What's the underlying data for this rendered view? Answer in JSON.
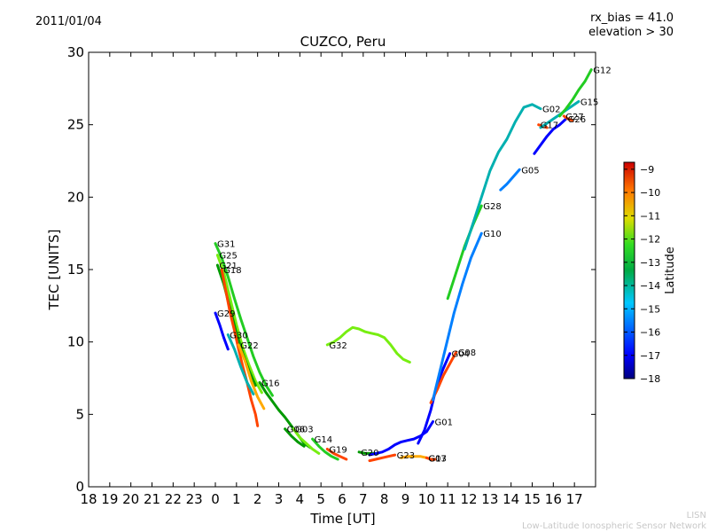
{
  "header": {
    "date": "2011/01/04",
    "rx_bias": "rx_bias = 41.0",
    "elevation": "elevation > 30"
  },
  "footer": {
    "line1": "LISN",
    "line2": "Low-Latitude Ionospheric Sensor Network"
  },
  "colors": {
    "scale": [
      "#00007f",
      "#0000ff",
      "#007fff",
      "#00b0b0",
      "#009900",
      "#22cc22",
      "#77ee11",
      "#dddd00",
      "#ffaa00",
      "#ff4400",
      "#cc0000"
    ]
  },
  "chart_data": {
    "type": "scatter",
    "title": "CUZCO, Peru",
    "xlabel": "Time [UT]",
    "ylabel": "TEC [UNITS]",
    "xlim": [
      0,
      24
    ],
    "ylim": [
      0,
      30
    ],
    "x_tick_labels": [
      "18",
      "19",
      "20",
      "21",
      "22",
      "23",
      "0",
      "1",
      "2",
      "3",
      "4",
      "5",
      "6",
      "7",
      "8",
      "9",
      "10",
      "11",
      "12",
      "13",
      "14",
      "15",
      "16",
      "17"
    ],
    "y_ticks": [
      0,
      5,
      10,
      15,
      20,
      25,
      30
    ],
    "grid": false,
    "colorbar": {
      "label": "Latitude",
      "min": -18,
      "max": -8.7,
      "ticks": [
        -18,
        -17,
        -16,
        -15,
        -14,
        -13,
        -12,
        -11,
        -10,
        -9
      ]
    },
    "series": [
      {
        "name": "G31",
        "lat": -13,
        "points": [
          [
            6.0,
            16.8
          ],
          [
            6.3,
            15.8
          ],
          [
            6.6,
            14.5
          ],
          [
            6.9,
            13.0
          ],
          [
            7.2,
            11.6
          ],
          [
            7.5,
            10.3
          ],
          [
            7.8,
            9.0
          ],
          [
            8.1,
            7.9
          ],
          [
            8.4,
            7.0
          ],
          [
            8.7,
            6.3
          ]
        ]
      },
      {
        "name": "G25",
        "lat": -12,
        "points": [
          [
            6.1,
            16.0
          ],
          [
            6.4,
            14.8
          ],
          [
            6.7,
            13.0
          ],
          [
            7.0,
            11.2
          ],
          [
            7.3,
            9.6
          ],
          [
            7.6,
            8.4
          ],
          [
            7.9,
            7.3
          ],
          [
            8.2,
            6.5
          ]
        ]
      },
      {
        "name": "G21",
        "lat": -14,
        "points": [
          [
            6.1,
            15.3
          ],
          [
            6.4,
            14.0
          ],
          [
            6.7,
            12.3
          ],
          [
            7.0,
            10.6
          ],
          [
            7.3,
            9.2
          ],
          [
            7.6,
            8.0
          ],
          [
            7.9,
            7.0
          ]
        ]
      },
      {
        "name": "G18",
        "lat": -10,
        "points": [
          [
            6.3,
            15.0
          ],
          [
            6.5,
            13.5
          ],
          [
            6.7,
            12.0
          ],
          [
            6.9,
            10.8
          ],
          [
            7.1,
            9.5
          ],
          [
            7.3,
            8.3
          ],
          [
            7.5,
            7.2
          ],
          [
            7.7,
            6.0
          ],
          [
            7.9,
            5.0
          ],
          [
            8.0,
            4.2
          ]
        ]
      },
      {
        "name": "G29",
        "lat": -17,
        "points": [
          [
            6.0,
            12.0
          ],
          [
            6.2,
            11.2
          ],
          [
            6.4,
            10.3
          ],
          [
            6.6,
            9.5
          ]
        ]
      },
      {
        "name": "G30",
        "lat": -15,
        "points": [
          [
            6.6,
            10.5
          ],
          [
            6.9,
            9.5
          ],
          [
            7.2,
            8.3
          ],
          [
            7.5,
            7.2
          ],
          [
            7.8,
            6.4
          ]
        ]
      },
      {
        "name": "G22",
        "lat": -11,
        "points": [
          [
            7.1,
            9.8
          ],
          [
            7.4,
            8.7
          ],
          [
            7.7,
            7.3
          ],
          [
            8.0,
            6.2
          ],
          [
            8.3,
            5.4
          ]
        ]
      },
      {
        "name": "G16",
        "lat": -14,
        "points": [
          [
            8.1,
            7.2
          ],
          [
            8.4,
            6.5
          ],
          [
            8.7,
            5.9
          ],
          [
            9.0,
            5.3
          ],
          [
            9.3,
            4.8
          ],
          [
            9.6,
            4.2
          ],
          [
            9.9,
            3.6
          ],
          [
            10.2,
            3.0
          ],
          [
            10.5,
            2.7
          ]
        ]
      },
      {
        "name": "G06",
        "lat": -14,
        "points": [
          [
            9.3,
            4.0
          ],
          [
            9.6,
            3.5
          ],
          [
            9.9,
            3.1
          ],
          [
            10.2,
            2.8
          ]
        ]
      },
      {
        "name": "G03",
        "lat": -12,
        "points": [
          [
            9.7,
            4.0
          ],
          [
            10.0,
            3.4
          ],
          [
            10.3,
            3.0
          ],
          [
            10.6,
            2.6
          ],
          [
            10.9,
            2.3
          ]
        ]
      },
      {
        "name": "G14",
        "lat": -13,
        "points": [
          [
            10.6,
            3.3
          ],
          [
            10.9,
            2.8
          ],
          [
            11.2,
            2.4
          ],
          [
            11.5,
            2.1
          ],
          [
            11.8,
            1.9
          ]
        ]
      },
      {
        "name": "G19",
        "lat": -10,
        "points": [
          [
            11.3,
            2.6
          ],
          [
            11.6,
            2.3
          ],
          [
            11.9,
            2.1
          ],
          [
            12.2,
            1.9
          ]
        ]
      },
      {
        "name": "G32",
        "lat": -12,
        "points": [
          [
            11.3,
            9.8
          ],
          [
            11.6,
            10.0
          ],
          [
            11.9,
            10.3
          ],
          [
            12.2,
            10.7
          ],
          [
            12.5,
            11.0
          ],
          [
            12.8,
            10.9
          ],
          [
            13.1,
            10.7
          ],
          [
            13.4,
            10.6
          ],
          [
            13.7,
            10.5
          ],
          [
            14.0,
            10.3
          ],
          [
            14.3,
            9.8
          ],
          [
            14.6,
            9.2
          ],
          [
            14.9,
            8.8
          ],
          [
            15.2,
            8.6
          ]
        ]
      },
      {
        "name": "G20",
        "lat": -14,
        "points": [
          [
            12.8,
            2.4
          ],
          [
            13.1,
            2.3
          ],
          [
            13.4,
            2.3
          ],
          [
            13.7,
            2.3
          ]
        ]
      },
      {
        "name": "G01",
        "lat": -17,
        "points": [
          [
            13.3,
            2.2
          ],
          [
            13.6,
            2.3
          ],
          [
            13.9,
            2.4
          ],
          [
            14.2,
            2.6
          ],
          [
            14.5,
            2.9
          ],
          [
            14.8,
            3.1
          ],
          [
            15.1,
            3.2
          ],
          [
            15.4,
            3.3
          ],
          [
            15.7,
            3.5
          ],
          [
            16.0,
            3.8
          ],
          [
            16.3,
            4.5
          ]
        ]
      },
      {
        "name": "G23",
        "lat": -10,
        "points": [
          [
            13.3,
            1.8
          ],
          [
            13.6,
            1.9
          ],
          [
            13.9,
            2.0
          ],
          [
            14.2,
            2.1
          ],
          [
            14.5,
            2.2
          ]
        ]
      },
      {
        "name": "G13",
        "lat": -11,
        "points": [
          [
            14.8,
            2.0
          ],
          [
            15.1,
            2.1
          ],
          [
            15.4,
            2.1
          ],
          [
            15.7,
            2.1
          ],
          [
            16.0,
            2.0
          ]
        ]
      },
      {
        "name": "G07",
        "lat": -10,
        "points": [
          [
            16.0,
            2.0
          ],
          [
            16.2,
            1.9
          ],
          [
            16.4,
            1.9
          ]
        ]
      },
      {
        "name": "G04",
        "lat": -17,
        "points": [
          [
            15.6,
            3.0
          ],
          [
            15.9,
            3.9
          ],
          [
            16.2,
            5.3
          ],
          [
            16.5,
            7.1
          ],
          [
            16.8,
            8.2
          ],
          [
            17.1,
            9.2
          ]
        ]
      },
      {
        "name": "G08",
        "lat": -10,
        "points": [
          [
            16.2,
            5.8
          ],
          [
            16.5,
            6.7
          ],
          [
            16.8,
            7.7
          ],
          [
            17.1,
            8.5
          ],
          [
            17.4,
            9.3
          ]
        ]
      },
      {
        "name": "G10",
        "lat": -16,
        "points": [
          [
            16.3,
            6.0
          ],
          [
            16.8,
            9.0
          ],
          [
            17.3,
            12.0
          ],
          [
            17.7,
            14.0
          ],
          [
            18.1,
            15.8
          ],
          [
            18.6,
            17.5
          ]
        ]
      },
      {
        "name": "G28",
        "lat": -13,
        "points": [
          [
            17.0,
            13.0
          ],
          [
            17.4,
            14.8
          ],
          [
            17.8,
            16.6
          ],
          [
            18.2,
            18.1
          ],
          [
            18.6,
            19.4
          ]
        ]
      },
      {
        "name": "G02",
        "lat": -15,
        "points": [
          [
            17.8,
            16.4
          ],
          [
            18.2,
            18.2
          ],
          [
            18.6,
            20.0
          ],
          [
            19.0,
            21.8
          ],
          [
            19.4,
            23.1
          ],
          [
            19.8,
            24.0
          ],
          [
            20.2,
            25.2
          ],
          [
            20.6,
            26.2
          ],
          [
            21.0,
            26.4
          ],
          [
            21.4,
            26.1
          ]
        ]
      },
      {
        "name": "G05",
        "lat": -16,
        "points": [
          [
            19.5,
            20.5
          ],
          [
            19.8,
            20.9
          ],
          [
            20.1,
            21.4
          ],
          [
            20.4,
            21.9
          ]
        ]
      },
      {
        "name": "G17",
        "lat": -10,
        "points": [
          [
            21.3,
            25.0
          ],
          [
            21.5,
            24.9
          ],
          [
            21.7,
            24.8
          ]
        ]
      },
      {
        "name": "G26",
        "lat": -17,
        "points": [
          [
            21.1,
            23.0
          ],
          [
            21.4,
            23.6
          ],
          [
            21.7,
            24.2
          ],
          [
            22.0,
            24.7
          ],
          [
            22.3,
            25.0
          ],
          [
            22.6,
            25.4
          ]
        ]
      },
      {
        "name": "G15",
        "lat": -15,
        "points": [
          [
            21.4,
            24.8
          ],
          [
            21.8,
            25.2
          ],
          [
            22.2,
            25.6
          ],
          [
            22.6,
            26.0
          ],
          [
            22.9,
            26.3
          ],
          [
            23.2,
            26.6
          ]
        ]
      },
      {
        "name": "G12",
        "lat": -13,
        "points": [
          [
            22.3,
            25.6
          ],
          [
            22.6,
            26.1
          ],
          [
            22.9,
            26.7
          ],
          [
            23.2,
            27.4
          ],
          [
            23.5,
            28.0
          ],
          [
            23.8,
            28.8
          ]
        ]
      },
      {
        "name": "G27",
        "lat": -10,
        "points": [
          [
            22.5,
            25.6
          ],
          [
            22.7,
            25.4
          ],
          [
            22.9,
            25.3
          ]
        ]
      }
    ]
  }
}
